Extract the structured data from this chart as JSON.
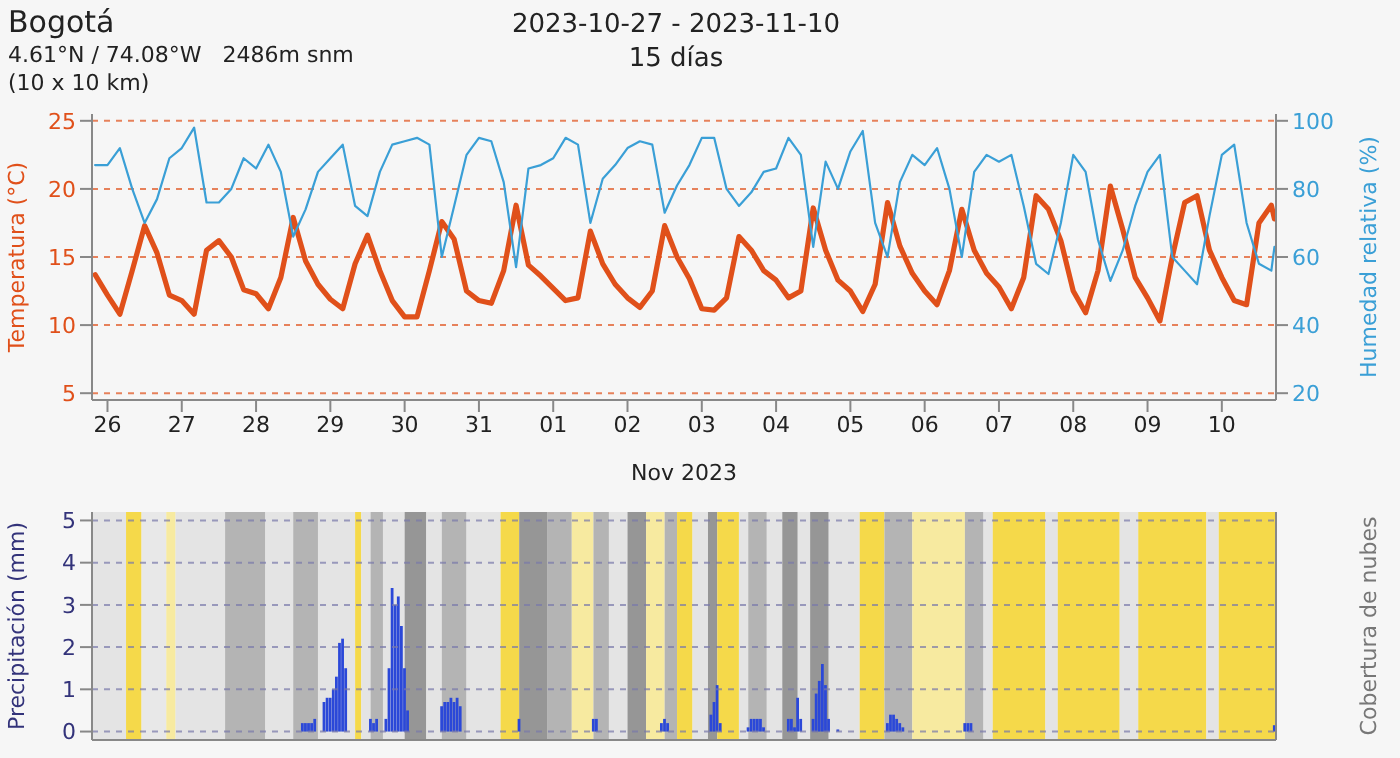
{
  "chart_data": [
    {
      "type": "line",
      "title": "2023-10-27 - 2023-11-10",
      "subtitle": "15 días",
      "annotations": [
        "Bogotá",
        "4.61°N / 74.08°W   2486m snm",
        "(10 x 10 km)"
      ],
      "ylabel": "Temperatura (°C)",
      "y2label": "Humedad relativa (%)",
      "xlabel": "Nov 2023",
      "xlim": [
        "2023-10-25T19:00",
        "2023-11-10T17:30"
      ],
      "xticks": [
        {
          "value": "2023-10-26",
          "label": "26"
        },
        {
          "value": "2023-10-27",
          "label": "27"
        },
        {
          "value": "2023-10-28",
          "label": "28"
        },
        {
          "value": "2023-10-29",
          "label": "29"
        },
        {
          "value": "2023-10-30",
          "label": "30"
        },
        {
          "value": "2023-10-31",
          "label": "31"
        },
        {
          "value": "2023-11-01",
          "label": "01"
        },
        {
          "value": "2023-11-02",
          "label": "02"
        },
        {
          "value": "2023-11-03",
          "label": "03"
        },
        {
          "value": "2023-11-04",
          "label": "04"
        },
        {
          "value": "2023-11-05",
          "label": "05"
        },
        {
          "value": "2023-11-06",
          "label": "06"
        },
        {
          "value": "2023-11-07",
          "label": "07"
        },
        {
          "value": "2023-11-08",
          "label": "08"
        },
        {
          "value": "2023-11-09",
          "label": "09"
        },
        {
          "value": "2023-11-10",
          "label": "10"
        }
      ],
      "ylim": [
        4.5,
        25.5
      ],
      "yticks": [
        5,
        10,
        15,
        20,
        25
      ],
      "y2lim": [
        18,
        102
      ],
      "y2ticks": [
        20,
        40,
        60,
        80,
        100
      ],
      "grid": "y",
      "line_style": "solid",
      "marker": "none",
      "x": [
        "2023-10-25T20:00",
        "2023-10-26T00:00",
        "2023-10-26T04:00",
        "2023-10-26T08:00",
        "2023-10-26T12:00",
        "2023-10-26T16:00",
        "2023-10-26T20:00",
        "2023-10-27T00:00",
        "2023-10-27T04:00",
        "2023-10-27T08:00",
        "2023-10-27T12:00",
        "2023-10-27T16:00",
        "2023-10-27T20:00",
        "2023-10-28T00:00",
        "2023-10-28T04:00",
        "2023-10-28T08:00",
        "2023-10-28T12:00",
        "2023-10-28T16:00",
        "2023-10-28T20:00",
        "2023-10-29T00:00",
        "2023-10-29T04:00",
        "2023-10-29T08:00",
        "2023-10-29T12:00",
        "2023-10-29T16:00",
        "2023-10-29T20:00",
        "2023-10-30T00:00",
        "2023-10-30T04:00",
        "2023-10-30T08:00",
        "2023-10-30T12:00",
        "2023-10-30T16:00",
        "2023-10-30T20:00",
        "2023-10-31T00:00",
        "2023-10-31T04:00",
        "2023-10-31T08:00",
        "2023-10-31T12:00",
        "2023-10-31T16:00",
        "2023-10-31T20:00",
        "2023-11-01T00:00",
        "2023-11-01T04:00",
        "2023-11-01T08:00",
        "2023-11-01T12:00",
        "2023-11-01T16:00",
        "2023-11-01T20:00",
        "2023-11-02T00:00",
        "2023-11-02T04:00",
        "2023-11-02T08:00",
        "2023-11-02T12:00",
        "2023-11-02T16:00",
        "2023-11-02T20:00",
        "2023-11-03T00:00",
        "2023-11-03T04:00",
        "2023-11-03T08:00",
        "2023-11-03T12:00",
        "2023-11-03T16:00",
        "2023-11-03T20:00",
        "2023-11-04T00:00",
        "2023-11-04T04:00",
        "2023-11-04T08:00",
        "2023-11-04T12:00",
        "2023-11-04T16:00",
        "2023-11-04T20:00",
        "2023-11-05T00:00",
        "2023-11-05T04:00",
        "2023-11-05T08:00",
        "2023-11-05T12:00",
        "2023-11-05T16:00",
        "2023-11-05T20:00",
        "2023-11-06T00:00",
        "2023-11-06T04:00",
        "2023-11-06T08:00",
        "2023-11-06T12:00",
        "2023-11-06T16:00",
        "2023-11-06T20:00",
        "2023-11-07T00:00",
        "2023-11-07T04:00",
        "2023-11-07T08:00",
        "2023-11-07T12:00",
        "2023-11-07T16:00",
        "2023-11-07T20:00",
        "2023-11-08T00:00",
        "2023-11-08T04:00",
        "2023-11-08T08:00",
        "2023-11-08T12:00",
        "2023-11-08T16:00",
        "2023-11-08T20:00",
        "2023-11-09T00:00",
        "2023-11-09T04:00",
        "2023-11-09T08:00",
        "2023-11-09T12:00",
        "2023-11-09T16:00",
        "2023-11-09T20:00",
        "2023-11-10T00:00",
        "2023-11-10T04:00",
        "2023-11-10T08:00",
        "2023-11-10T12:00",
        "2023-11-10T16:00",
        "2023-11-10T17:00"
      ],
      "series": [
        {
          "color": "#e0501a",
          "values": [
            13.7,
            12.2,
            10.8,
            14,
            17.3,
            15.3,
            12.2,
            11.8,
            10.8,
            15.5,
            16.2,
            15,
            12.6,
            12.3,
            11.2,
            13.5,
            17.9,
            14.7,
            13,
            11.9,
            11.2,
            14.5,
            16.6,
            14,
            11.8,
            10.6,
            10.6,
            14,
            17.6,
            16.3,
            12.5,
            11.8,
            11.6,
            14,
            18.8,
            14.4,
            13.6,
            12.7,
            11.8,
            12,
            16.9,
            14.5,
            13,
            12,
            11.3,
            12.5,
            17.3,
            15,
            13.4,
            11.2,
            11.1,
            12,
            16.5,
            15.5,
            14,
            13.3,
            12,
            12.5,
            18.6,
            15.5,
            13.3,
            12.5,
            11,
            13,
            19,
            15.8,
            13.8,
            12.5,
            11.5,
            14,
            18.5,
            15.5,
            13.8,
            12.8,
            11.2,
            13.5,
            19.5,
            18.5,
            16.2,
            12.5,
            10.9,
            14,
            20.2,
            17,
            13.5,
            12,
            10.3,
            15,
            19,
            19.5,
            15.5,
            13.5,
            11.8,
            11.5,
            17.5,
            18.8,
            17.8
          ]
        },
        {
          "color": "#3a9fd6",
          "axis": "y2",
          "values": [
            87,
            87,
            92,
            80,
            70,
            77,
            89,
            92,
            98,
            76,
            76,
            80,
            89,
            86,
            93,
            85,
            66,
            74,
            85,
            89,
            93,
            75,
            72,
            85,
            93,
            94,
            95,
            93,
            60,
            75,
            90,
            95,
            94,
            82,
            57,
            86,
            87,
            89,
            95,
            93,
            70,
            83,
            87,
            92,
            94,
            93,
            73,
            81,
            87,
            95,
            95,
            80,
            75,
            79,
            85,
            86,
            95,
            90,
            63,
            88,
            80,
            91,
            97,
            70,
            60,
            82,
            90,
            87,
            92,
            80,
            60,
            85,
            90,
            88,
            90,
            75,
            58,
            55,
            70,
            90,
            85,
            65,
            53,
            62,
            75,
            85,
            90,
            60,
            56,
            52,
            72,
            90,
            93,
            70,
            58,
            56,
            63
          ]
        }
      ]
    },
    {
      "type": "bar",
      "ylabel": "Precipitación (mm)",
      "y2label": "Cobertura de nubes",
      "xlim": [
        "2023-10-25T19:00",
        "2023-11-10T17:30"
      ],
      "ylim": [
        -0.2,
        5.2
      ],
      "yticks": [
        0,
        1,
        2,
        3,
        4,
        5
      ],
      "grid": "y",
      "tick_labels": "y",
      "x": [
        "2023-10-28T15:00",
        "2023-10-28T16:00",
        "2023-10-28T17:00",
        "2023-10-28T18:00",
        "2023-10-28T19:00",
        "2023-10-28T22:00",
        "2023-10-28T23:00",
        "2023-10-29T00:00",
        "2023-10-29T01:00",
        "2023-10-29T02:00",
        "2023-10-29T03:00",
        "2023-10-29T04:00",
        "2023-10-29T05:00",
        "2023-10-29T13:00",
        "2023-10-29T14:00",
        "2023-10-29T15:00",
        "2023-10-29T18:00",
        "2023-10-29T19:00",
        "2023-10-29T20:00",
        "2023-10-29T21:00",
        "2023-10-29T22:00",
        "2023-10-29T23:00",
        "2023-10-30T00:00",
        "2023-10-30T01:00",
        "2023-10-30T12:00",
        "2023-10-30T13:00",
        "2023-10-30T14:00",
        "2023-10-30T15:00",
        "2023-10-30T16:00",
        "2023-10-30T17:00",
        "2023-10-30T18:00",
        "2023-10-31T13:00",
        "2023-11-01T13:00",
        "2023-11-01T14:00",
        "2023-11-02T11:00",
        "2023-11-02T12:00",
        "2023-11-02T13:00",
        "2023-11-03T03:00",
        "2023-11-03T04:00",
        "2023-11-03T05:00",
        "2023-11-03T06:00",
        "2023-11-03T15:00",
        "2023-11-03T16:00",
        "2023-11-03T17:00",
        "2023-11-03T18:00",
        "2023-11-03T19:00",
        "2023-11-03T20:00",
        "2023-11-04T04:00",
        "2023-11-04T05:00",
        "2023-11-04T06:00",
        "2023-11-04T07:00",
        "2023-11-04T08:00",
        "2023-11-04T12:00",
        "2023-11-04T13:00",
        "2023-11-04T14:00",
        "2023-11-04T15:00",
        "2023-11-04T16:00",
        "2023-11-04T17:00",
        "2023-11-04T20:00",
        "2023-11-05T12:00",
        "2023-11-05T13:00",
        "2023-11-05T14:00",
        "2023-11-05T15:00",
        "2023-11-05T16:00",
        "2023-11-05T17:00",
        "2023-11-06T13:00",
        "2023-11-06T14:00",
        "2023-11-06T15:00",
        "2023-11-10T17:00"
      ],
      "series": [
        {
          "color": "#2b48d8",
          "values": [
            0.2,
            0.2,
            0.2,
            0.2,
            0.3,
            0.7,
            0.8,
            0.8,
            1.0,
            1.3,
            2.1,
            2.2,
            1.5,
            0.3,
            0.2,
            0.3,
            0.3,
            1.5,
            3.4,
            3.0,
            3.2,
            2.5,
            1.5,
            0.5,
            0.6,
            0.7,
            0.7,
            0.8,
            0.7,
            0.8,
            0.6,
            0.3,
            0.3,
            0.3,
            0.2,
            0.3,
            0.2,
            0.4,
            0.7,
            1.1,
            0.2,
            0.1,
            0.3,
            0.3,
            0.3,
            0.3,
            0.1,
            0.3,
            0.3,
            0.1,
            0.8,
            0.3,
            0.3,
            0.9,
            1.2,
            1.6,
            1.1,
            0.3,
            0.05,
            0.2,
            0.4,
            0.4,
            0.3,
            0.2,
            0.1,
            0.2,
            0.2,
            0.2,
            0.15
          ]
        }
      ],
      "bands": [
        {
          "axis": "x",
          "from": "2023-10-25T19:00",
          "to": "2023-10-26T06:00",
          "color": "#e4e4e4"
        },
        {
          "axis": "x",
          "from": "2023-10-26T06:00",
          "to": "2023-10-26T11:00",
          "color": "#f5d94a"
        },
        {
          "axis": "x",
          "from": "2023-10-26T11:00",
          "to": "2023-10-26T19:00",
          "color": "#e8e8e8"
        },
        {
          "axis": "x",
          "from": "2023-10-26T19:00",
          "to": "2023-10-26T22:00",
          "color": "#f7eaa0"
        },
        {
          "axis": "x",
          "from": "2023-10-26T22:00",
          "to": "2023-10-27T14:00",
          "color": "#e4e4e4"
        },
        {
          "axis": "x",
          "from": "2023-10-27T14:00",
          "to": "2023-10-28T03:00",
          "color": "#b4b4b4"
        },
        {
          "axis": "x",
          "from": "2023-10-28T03:00",
          "to": "2023-10-28T12:00",
          "color": "#e4e4e4"
        },
        {
          "axis": "x",
          "from": "2023-10-28T12:00",
          "to": "2023-10-28T20:00",
          "color": "#b4b4b4"
        },
        {
          "axis": "x",
          "from": "2023-10-28T20:00",
          "to": "2023-10-29T08:00",
          "color": "#e4e4e4"
        },
        {
          "axis": "x",
          "from": "2023-10-29T08:00",
          "to": "2023-10-29T10:00",
          "color": "#f5d94a"
        },
        {
          "axis": "x",
          "from": "2023-10-29T10:00",
          "to": "2023-10-29T13:00",
          "color": "#e4e4e4"
        },
        {
          "axis": "x",
          "from": "2023-10-29T13:00",
          "to": "2023-10-29T17:00",
          "color": "#b4b4b4"
        },
        {
          "axis": "x",
          "from": "2023-10-29T17:00",
          "to": "2023-10-30T00:00",
          "color": "#e4e4e4"
        },
        {
          "axis": "x",
          "from": "2023-10-30T00:00",
          "to": "2023-10-30T07:00",
          "color": "#969696"
        },
        {
          "axis": "x",
          "from": "2023-10-30T07:00",
          "to": "2023-10-30T12:00",
          "color": "#e4e4e4"
        },
        {
          "axis": "x",
          "from": "2023-10-30T12:00",
          "to": "2023-10-30T20:00",
          "color": "#b4b4b4"
        },
        {
          "axis": "x",
          "from": "2023-10-30T20:00",
          "to": "2023-10-31T07:00",
          "color": "#e4e4e4"
        },
        {
          "axis": "x",
          "from": "2023-10-31T07:00",
          "to": "2023-10-31T13:00",
          "color": "#f5d94a"
        },
        {
          "axis": "x",
          "from": "2023-10-31T13:00",
          "to": "2023-10-31T22:00",
          "color": "#969696"
        },
        {
          "axis": "x",
          "from": "2023-10-31T22:00",
          "to": "2023-11-01T06:00",
          "color": "#b4b4b4"
        },
        {
          "axis": "x",
          "from": "2023-11-01T06:00",
          "to": "2023-11-01T13:00",
          "color": "#f7eaa0"
        },
        {
          "axis": "x",
          "from": "2023-11-01T13:00",
          "to": "2023-11-01T18:00",
          "color": "#b4b4b4"
        },
        {
          "axis": "x",
          "from": "2023-11-01T18:00",
          "to": "2023-11-02T00:00",
          "color": "#e4e4e4"
        },
        {
          "axis": "x",
          "from": "2023-11-02T00:00",
          "to": "2023-11-02T06:00",
          "color": "#969696"
        },
        {
          "axis": "x",
          "from": "2023-11-02T06:00",
          "to": "2023-11-02T12:00",
          "color": "#f7eaa0"
        },
        {
          "axis": "x",
          "from": "2023-11-02T12:00",
          "to": "2023-11-02T16:00",
          "color": "#b4b4b4"
        },
        {
          "axis": "x",
          "from": "2023-11-02T16:00",
          "to": "2023-11-02T21:00",
          "color": "#f5d94a"
        },
        {
          "axis": "x",
          "from": "2023-11-02T21:00",
          "to": "2023-11-03T02:00",
          "color": "#e4e4e4"
        },
        {
          "axis": "x",
          "from": "2023-11-03T02:00",
          "to": "2023-11-03T05:00",
          "color": "#969696"
        },
        {
          "axis": "x",
          "from": "2023-11-03T05:00",
          "to": "2023-11-03T12:00",
          "color": "#f5d94a"
        },
        {
          "axis": "x",
          "from": "2023-11-03T12:00",
          "to": "2023-11-03T15:00",
          "color": "#e4e4e4"
        },
        {
          "axis": "x",
          "from": "2023-11-03T15:00",
          "to": "2023-11-03T21:00",
          "color": "#b4b4b4"
        },
        {
          "axis": "x",
          "from": "2023-11-03T21:00",
          "to": "2023-11-04T02:00",
          "color": "#e4e4e4"
        },
        {
          "axis": "x",
          "from": "2023-11-04T02:00",
          "to": "2023-11-04T07:00",
          "color": "#969696"
        },
        {
          "axis": "x",
          "from": "2023-11-04T07:00",
          "to": "2023-11-04T11:00",
          "color": "#e4e4e4"
        },
        {
          "axis": "x",
          "from": "2023-11-04T11:00",
          "to": "2023-11-04T17:00",
          "color": "#969696"
        },
        {
          "axis": "x",
          "from": "2023-11-04T17:00",
          "to": "2023-11-05T03:00",
          "color": "#e4e4e4"
        },
        {
          "axis": "x",
          "from": "2023-11-05T03:00",
          "to": "2023-11-05T11:00",
          "color": "#f5d94a"
        },
        {
          "axis": "x",
          "from": "2023-11-05T11:00",
          "to": "2023-11-05T20:00",
          "color": "#b4b4b4"
        },
        {
          "axis": "x",
          "from": "2023-11-05T20:00",
          "to": "2023-11-06T13:00",
          "color": "#f7eaa0"
        },
        {
          "axis": "x",
          "from": "2023-11-06T13:00",
          "to": "2023-11-06T19:00",
          "color": "#b4b4b4"
        },
        {
          "axis": "x",
          "from": "2023-11-06T19:00",
          "to": "2023-11-06T22:00",
          "color": "#e4e4e4"
        },
        {
          "axis": "x",
          "from": "2023-11-06T22:00",
          "to": "2023-11-07T15:00",
          "color": "#f5d94a"
        },
        {
          "axis": "x",
          "from": "2023-11-07T15:00",
          "to": "2023-11-07T19:00",
          "color": "#e4e4e4"
        },
        {
          "axis": "x",
          "from": "2023-11-07T19:00",
          "to": "2023-11-08T15:00",
          "color": "#f5d94a"
        },
        {
          "axis": "x",
          "from": "2023-11-08T15:00",
          "to": "2023-11-08T21:00",
          "color": "#e4e4e4"
        },
        {
          "axis": "x",
          "from": "2023-11-08T21:00",
          "to": "2023-11-09T19:00",
          "color": "#f5d94a"
        },
        {
          "axis": "x",
          "from": "2023-11-09T19:00",
          "to": "2023-11-09T23:00",
          "color": "#e4e4e4"
        },
        {
          "axis": "x",
          "from": "2023-11-09T23:00",
          "to": "2023-11-10T17:30",
          "color": "#f5d94a"
        }
      ]
    }
  ]
}
